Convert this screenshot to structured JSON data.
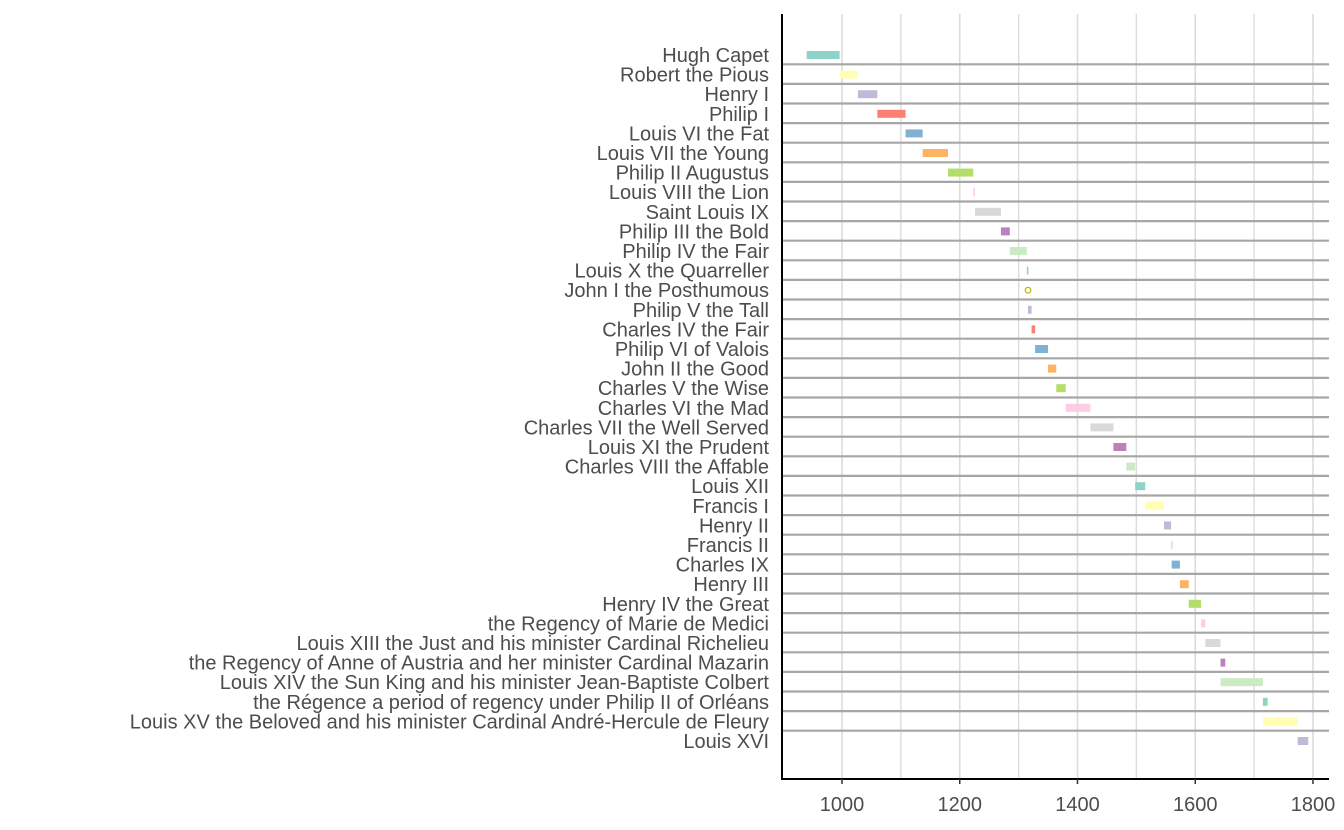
{
  "chart_data": {
    "type": "timeline",
    "xlim": [
      905,
      1835
    ],
    "x_ticks": [
      1000,
      1200,
      1400,
      1600,
      1800
    ],
    "grid": "vertical major gridlines at x ticks; grey horizontal separator line under each row",
    "legend": "none",
    "reigns": [
      {
        "label": "Hugh Capet",
        "start": 940,
        "end": 996,
        "color": "#8DD3C7"
      },
      {
        "label": "Robert the Pious",
        "start": 996,
        "end": 1027,
        "color": "#FFFFB3"
      },
      {
        "label": "Henry I",
        "start": 1027,
        "end": 1060,
        "color": "#BEBADA"
      },
      {
        "label": "Philip I",
        "start": 1060,
        "end": 1108,
        "color": "#FB8072"
      },
      {
        "label": "Louis VI the Fat",
        "start": 1108,
        "end": 1137,
        "color": "#80B1D3"
      },
      {
        "label": "Louis VII the Young",
        "start": 1137,
        "end": 1180,
        "color": "#FDB462"
      },
      {
        "label": "Philip II Augustus",
        "start": 1180,
        "end": 1223,
        "color": "#B3DE69"
      },
      {
        "label": "Louis VIII the Lion",
        "start": 1223,
        "end": 1226,
        "color": "#FCCDE5"
      },
      {
        "label": "Saint Louis IX",
        "start": 1226,
        "end": 1270,
        "color": "#D9D9D9"
      },
      {
        "label": "Philip III the Bold",
        "start": 1270,
        "end": 1285,
        "color": "#BC80BD"
      },
      {
        "label": "Philip IV the Fair",
        "start": 1285,
        "end": 1314,
        "color": "#CCEBC5"
      },
      {
        "label": "Louis X the Quarreller",
        "start": 1314,
        "end": 1316,
        "color": "#8DD3C7"
      },
      {
        "label": "John I the Posthumous",
        "start": 1316,
        "end": 1316,
        "color": "#FFFF99"
      },
      {
        "label": "Philip V the Tall",
        "start": 1316,
        "end": 1322,
        "color": "#BEBADA"
      },
      {
        "label": "Charles IV the Fair",
        "start": 1322,
        "end": 1328,
        "color": "#FB8072"
      },
      {
        "label": "Philip VI of Valois",
        "start": 1328,
        "end": 1350,
        "color": "#80B1D3"
      },
      {
        "label": "John II the Good",
        "start": 1350,
        "end": 1364,
        "color": "#FDB462"
      },
      {
        "label": "Charles V the Wise",
        "start": 1364,
        "end": 1380,
        "color": "#B3DE69"
      },
      {
        "label": "Charles VI the Mad",
        "start": 1380,
        "end": 1422,
        "color": "#FCCDE5"
      },
      {
        "label": "Charles VII the Well Served",
        "start": 1422,
        "end": 1461,
        "color": "#D9D9D9"
      },
      {
        "label": "Louis XI the Prudent",
        "start": 1461,
        "end": 1483,
        "color": "#BC80BD"
      },
      {
        "label": "Charles VIII the Affable",
        "start": 1483,
        "end": 1498,
        "color": "#CCEBC5"
      },
      {
        "label": "Louis XII",
        "start": 1498,
        "end": 1515,
        "color": "#8DD3C7"
      },
      {
        "label": "Francis I",
        "start": 1515,
        "end": 1547,
        "color": "#FFFFB3"
      },
      {
        "label": "Henry II",
        "start": 1547,
        "end": 1559,
        "color": "#BEBADA"
      },
      {
        "label": "Francis II",
        "start": 1559,
        "end": 1560,
        "color": "#FCCDE5"
      },
      {
        "label": "Charles IX",
        "start": 1560,
        "end": 1574,
        "color": "#80B1D3"
      },
      {
        "label": "Henry III",
        "start": 1574,
        "end": 1589,
        "color": "#FDB462"
      },
      {
        "label": "Henry IV the Great",
        "start": 1589,
        "end": 1610,
        "color": "#B3DE69"
      },
      {
        "label": "the Regency of Marie de Medici",
        "start": 1610,
        "end": 1617,
        "color": "#FCCDE5"
      },
      {
        "label": "Louis XIII the Just and his minister Cardinal Richelieu",
        "start": 1617,
        "end": 1643,
        "color": "#D9D9D9"
      },
      {
        "label": "the Regency of Anne of Austria and her minister Cardinal Mazarin",
        "start": 1643,
        "end": 1651,
        "color": "#BC80BD"
      },
      {
        "label": "Louis XIV the Sun King and his minister Jean-Baptiste Colbert",
        "start": 1643,
        "end": 1715,
        "color": "#CCEBC5"
      },
      {
        "label": "the Régence a period of regency under Philip II of Orléans",
        "start": 1715,
        "end": 1723,
        "color": "#8DD3C7"
      },
      {
        "label": "Louis XV the Beloved and his minister Cardinal André-Hercule de Fleury",
        "start": 1715,
        "end": 1774,
        "color": "#FFFFB3"
      },
      {
        "label": "Louis XVI",
        "start": 1774,
        "end": 1792,
        "color": "#BEBADA"
      }
    ]
  }
}
